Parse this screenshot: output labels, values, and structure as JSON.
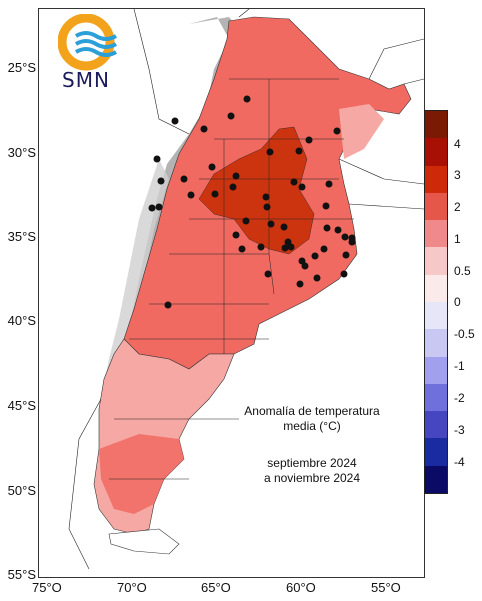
{
  "logo": {
    "text": "SMN"
  },
  "title": {
    "line1": "Anomalía de temperatura",
    "line2": "media (°C)"
  },
  "period": {
    "line1": "septiembre 2024",
    "line2": "a noviembre 2024"
  },
  "lat_labels": [
    "25°S",
    "30°S",
    "35°S",
    "40°S",
    "45°S",
    "50°S",
    "55°S"
  ],
  "lon_labels": [
    "75°O",
    "70°O",
    "65°O",
    "60°O",
    "55°O"
  ],
  "legend": {
    "labels": [
      "4",
      "3",
      "2",
      "1",
      "0.5",
      "0",
      "-0.5",
      "-1",
      "-2",
      "-3",
      "-4"
    ],
    "colors": [
      "#7a1a05",
      "#a80f05",
      "#cc2a08",
      "#e4574a",
      "#f08a8a",
      "#f6c8c8",
      "#fbeaea",
      "#e6e6f8",
      "#c8c8f2",
      "#a0a0ee",
      "#7070dd",
      "#4646c0",
      "#1a2aa0",
      "#0b0b66"
    ]
  },
  "colors": {
    "anom_0_5_1": "#f6a8a4",
    "anom_1_2": "#f06a62",
    "anom_2_3": "#cc3410",
    "land_high": "#b0b0b0"
  }
}
